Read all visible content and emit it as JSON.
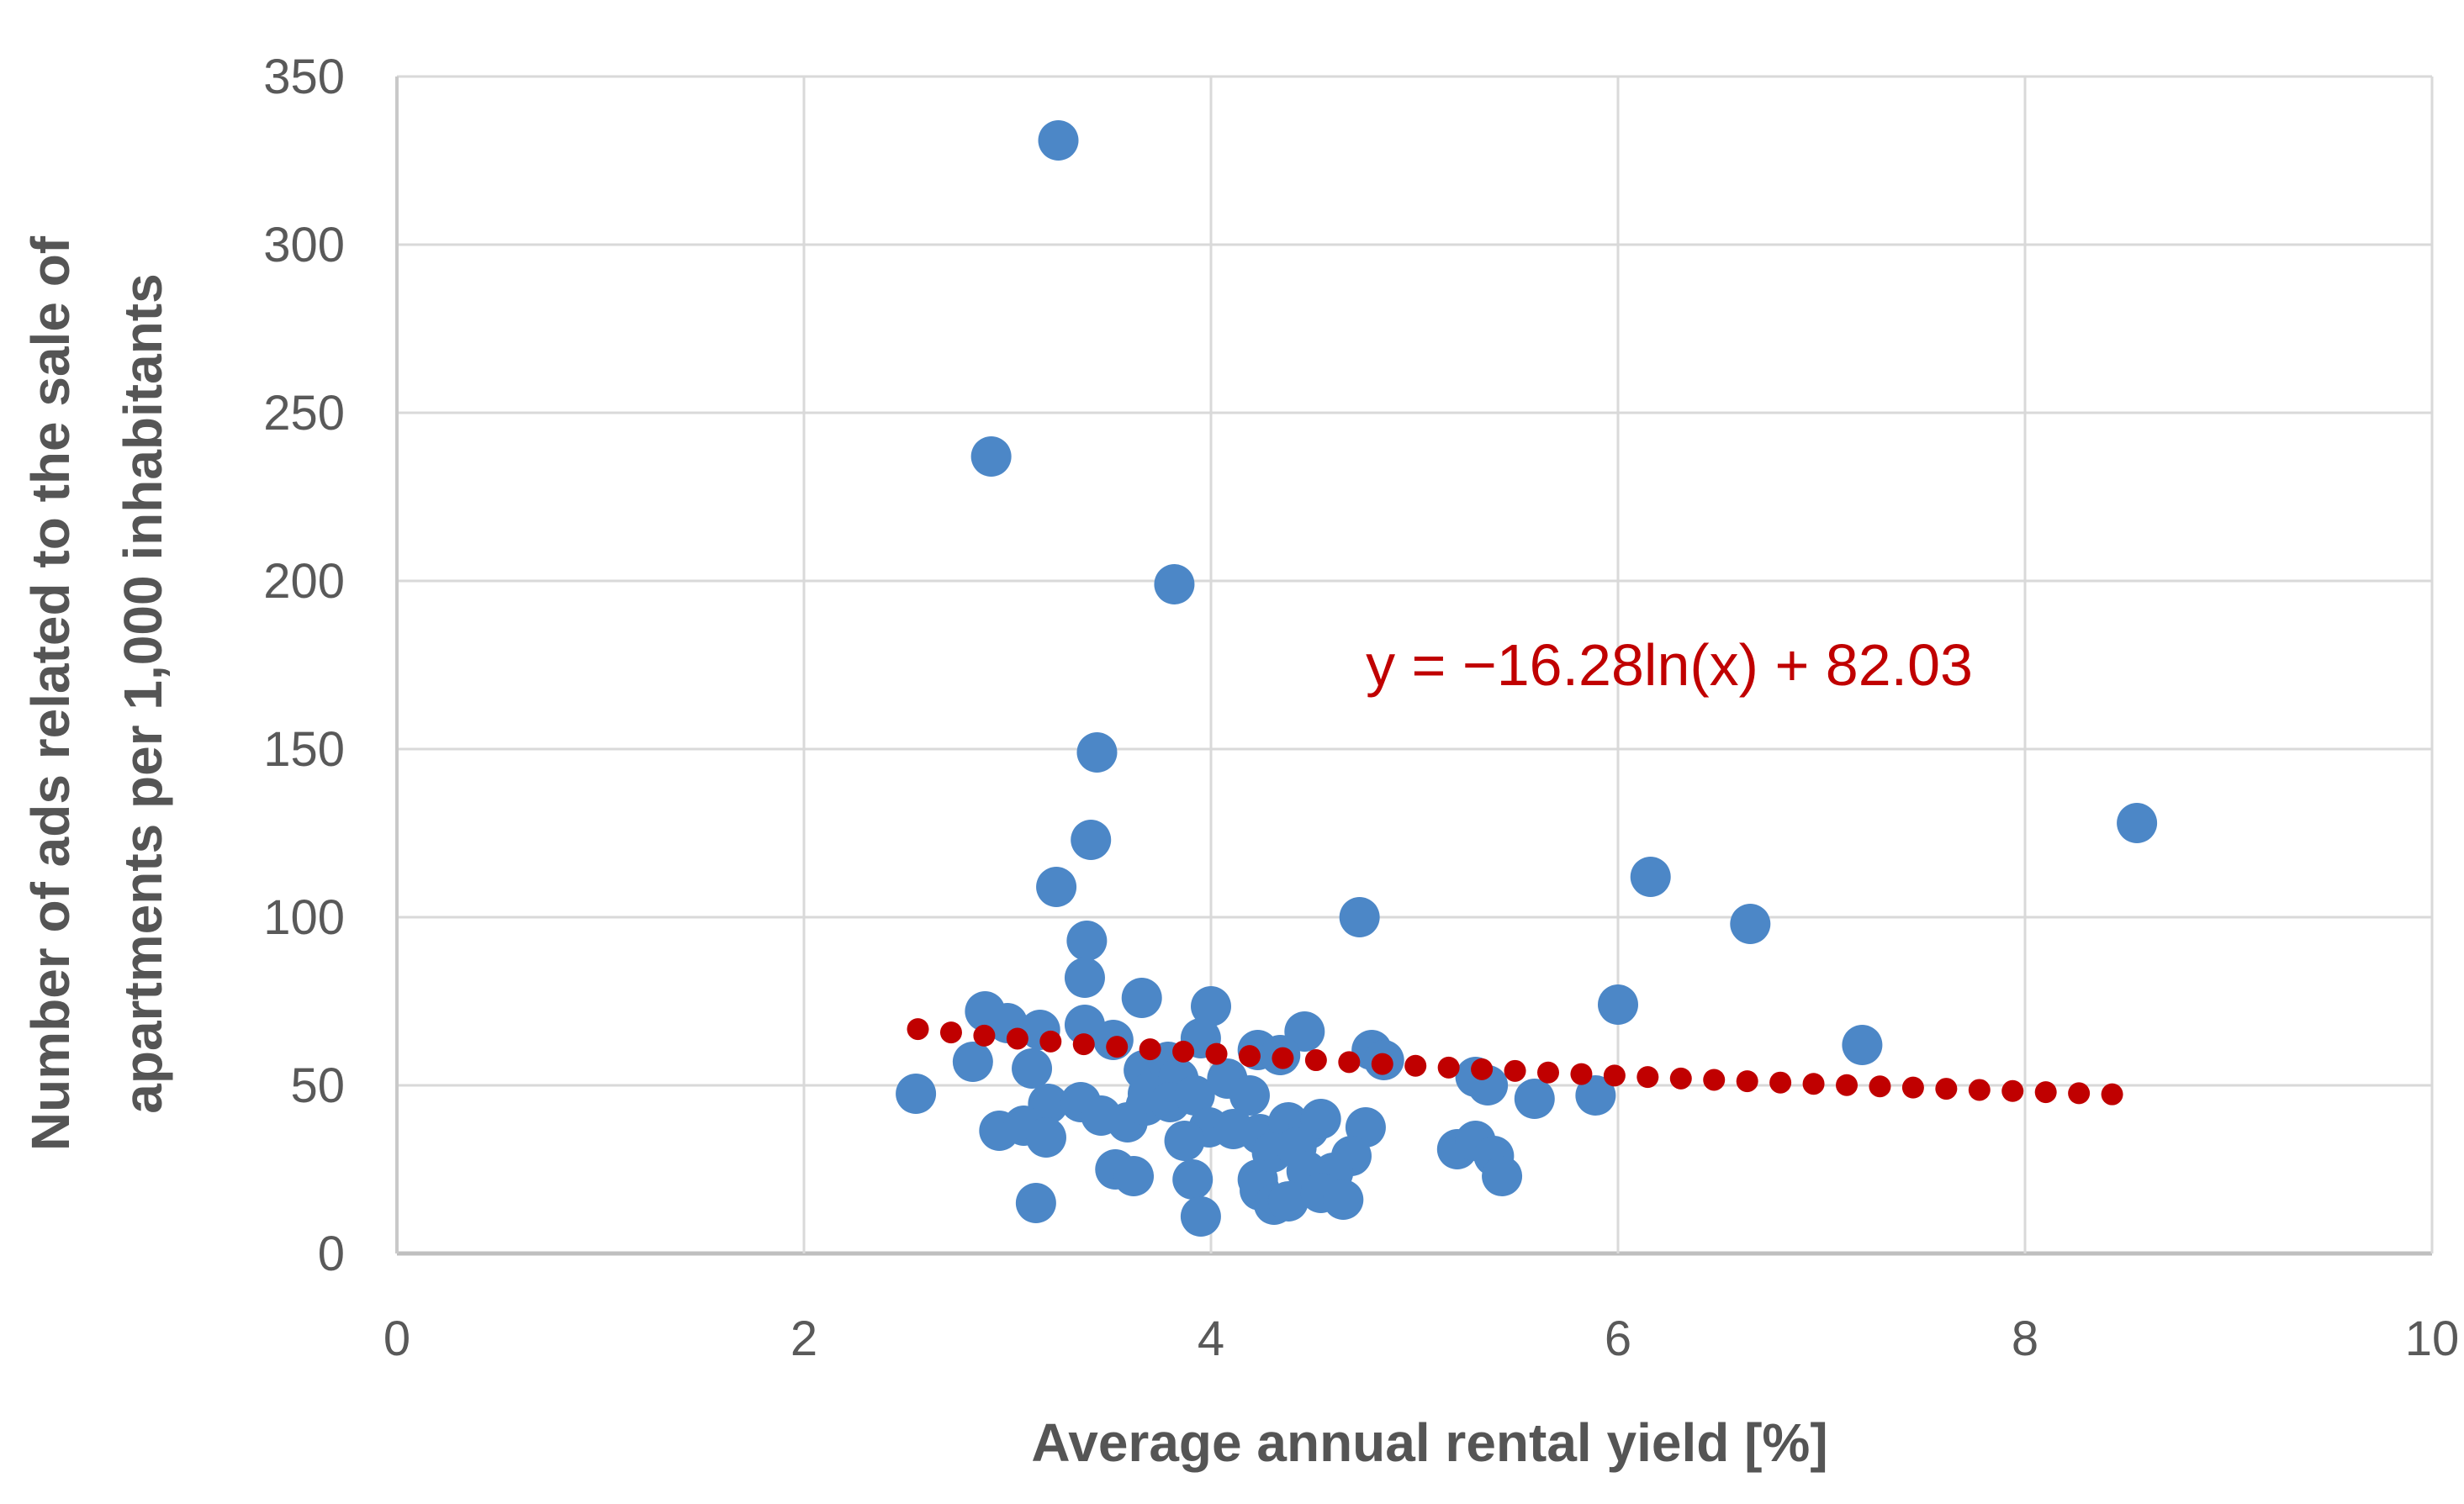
{
  "chart_data": {
    "type": "scatter",
    "title": "",
    "xlabel": "Average annual rental yield [%]",
    "ylabel_line1": "Number of ads related to the sale of",
    "ylabel_line2": "apartments per 1,000 inhabitants",
    "xlim": [
      0,
      10
    ],
    "ylim": [
      0,
      350
    ],
    "xticks": [
      0,
      2,
      4,
      6,
      8,
      10
    ],
    "yticks": [
      0,
      50,
      100,
      150,
      200,
      250,
      300,
      350
    ],
    "grid": true,
    "legend": "none",
    "colors": {
      "points": "#4C87C7",
      "trend": "#C00000",
      "gridline": "#D9D9D9",
      "axis_line": "#BFBFBF",
      "tick_text": "#595959",
      "axis_title_text": "#555555"
    },
    "marker": {
      "shape": "circle",
      "radius_px": 24
    },
    "trend_marker": {
      "shape": "circle",
      "radius_px": 13
    },
    "points": [
      [
        3.25,
        331
      ],
      [
        2.92,
        237
      ],
      [
        3.82,
        199
      ],
      [
        3.44,
        149
      ],
      [
        3.41,
        123
      ],
      [
        3.24,
        109
      ],
      [
        8.55,
        128
      ],
      [
        6.16,
        112
      ],
      [
        4.73,
        100
      ],
      [
        6.65,
        98
      ],
      [
        3.39,
        93
      ],
      [
        3.38,
        82
      ],
      [
        6.0,
        74
      ],
      [
        3.66,
        76
      ],
      [
        4.0,
        73.5
      ],
      [
        7.2,
        62
      ],
      [
        2.89,
        72
      ],
      [
        3.0,
        68.5
      ],
      [
        3.16,
        66.5
      ],
      [
        3.38,
        68
      ],
      [
        3.52,
        63.5
      ],
      [
        3.95,
        64
      ],
      [
        4.46,
        66
      ],
      [
        2.83,
        57
      ],
      [
        3.12,
        55
      ],
      [
        3.67,
        54.5
      ],
      [
        3.79,
        57
      ],
      [
        4.23,
        60.5
      ],
      [
        4.34,
        59
      ],
      [
        4.79,
        60.5
      ],
      [
        4.85,
        57.5
      ],
      [
        5.3,
        52.5
      ],
      [
        5.36,
        50
      ],
      [
        5.59,
        46
      ],
      [
        5.89,
        47
      ],
      [
        2.55,
        47.5
      ],
      [
        3.2,
        44.5
      ],
      [
        3.36,
        45
      ],
      [
        3.46,
        41
      ],
      [
        3.59,
        39
      ],
      [
        3.68,
        44
      ],
      [
        3.84,
        52
      ],
      [
        3.69,
        47.5
      ],
      [
        3.8,
        45
      ],
      [
        3.92,
        47
      ],
      [
        4.08,
        52
      ],
      [
        4.19,
        47
      ],
      [
        2.96,
        36.5
      ],
      [
        3.08,
        38
      ],
      [
        3.19,
        34.5
      ],
      [
        3.99,
        37.5
      ],
      [
        4.11,
        37
      ],
      [
        4.24,
        35.5
      ],
      [
        4.38,
        39
      ],
      [
        4.48,
        37
      ],
      [
        4.54,
        40
      ],
      [
        4.76,
        37.5
      ],
      [
        3.53,
        25
      ],
      [
        3.62,
        23
      ],
      [
        3.87,
        33.5
      ],
      [
        4.3,
        30
      ],
      [
        4.42,
        31.5
      ],
      [
        4.69,
        29
      ],
      [
        4.6,
        24
      ],
      [
        5.21,
        31
      ],
      [
        5.3,
        33.5
      ],
      [
        5.39,
        29
      ],
      [
        5.43,
        23
      ],
      [
        3.91,
        22
      ],
      [
        4.23,
        22
      ],
      [
        4.47,
        24.5
      ],
      [
        3.14,
        15
      ],
      [
        3.95,
        11
      ],
      [
        4.24,
        18.75
      ],
      [
        4.31,
        14.5
      ],
      [
        4.38,
        15.5
      ],
      [
        4.54,
        18
      ],
      [
        4.65,
        16
      ]
    ],
    "trendline": {
      "type": "logarithmic",
      "equation_label": "y = −16.28ln(x) + 82.03",
      "coef_a": -16.28,
      "coef_b": 82.03,
      "x_start": 2.56,
      "x_end": 8.43,
      "dot_step": 0.163,
      "style": "dotted"
    }
  }
}
